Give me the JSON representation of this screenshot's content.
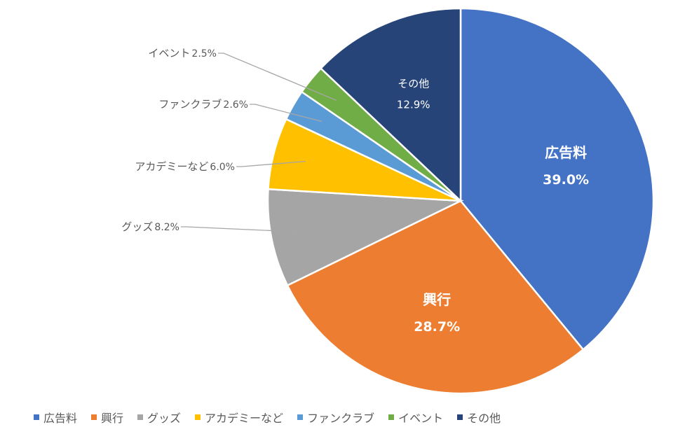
{
  "chart_data": {
    "type": "pie",
    "title": "",
    "slices": [
      {
        "label": "広告料",
        "value": 39.0,
        "value_label": "39.0%",
        "color": "#4472C4"
      },
      {
        "label": "興行",
        "value": 28.7,
        "value_label": "28.7%",
        "color": "#ED7D31"
      },
      {
        "label": "グッズ",
        "value": 8.2,
        "value_label": "8.2%",
        "color": "#A5A5A5"
      },
      {
        "label": "アカデミーなど",
        "value": 6.0,
        "value_label": "6.0%",
        "color": "#FFC000"
      },
      {
        "label": "ファンクラブ",
        "value": 2.6,
        "value_label": "2.6%",
        "color": "#5B9BD5"
      },
      {
        "label": "イベント",
        "value": 2.5,
        "value_label": "2.5%",
        "color": "#70AD47"
      },
      {
        "label": "その他",
        "value": 12.9,
        "value_label": "12.9%",
        "color": "#264478"
      }
    ],
    "legend_position": "bottom"
  }
}
